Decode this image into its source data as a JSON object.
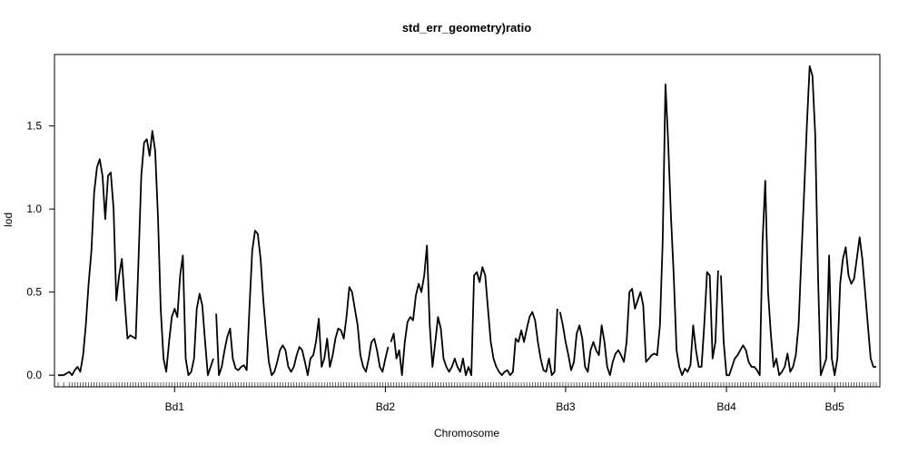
{
  "chart_data": {
    "type": "line",
    "title": "std_err_geometry)ratio",
    "xlabel": "Chromosome",
    "ylabel": "lod",
    "ylim": [
      -0.07,
      1.93
    ],
    "yticks": [
      0.0,
      0.5,
      1.0,
      1.5
    ],
    "ytick_labels": [
      "0.0",
      "0.5",
      "1.0",
      "1.5"
    ],
    "grid": false,
    "legend": "none",
    "line_color": "#000000",
    "chromosomes": [
      {
        "name": "Bd1",
        "start": 0,
        "end": 56,
        "points": [
          [
            0,
            0.0
          ],
          [
            2,
            0.0
          ],
          [
            4,
            0.02
          ],
          [
            5,
            0.0
          ],
          [
            6,
            0.03
          ],
          [
            7,
            0.05
          ],
          [
            8,
            0.02
          ],
          [
            9,
            0.12
          ],
          [
            10,
            0.3
          ],
          [
            11,
            0.55
          ],
          [
            12,
            0.75
          ],
          [
            13,
            1.1
          ],
          [
            14,
            1.25
          ],
          [
            15,
            1.3
          ],
          [
            16,
            1.2
          ],
          [
            17,
            0.94
          ],
          [
            18,
            1.2
          ],
          [
            19,
            1.22
          ],
          [
            20,
            1.0
          ],
          [
            21,
            0.45
          ],
          [
            22,
            0.6
          ],
          [
            23,
            0.7
          ],
          [
            24,
            0.45
          ],
          [
            25,
            0.22
          ],
          [
            26,
            0.24
          ],
          [
            27,
            0.23
          ],
          [
            28,
            0.22
          ],
          [
            29,
            0.7
          ],
          [
            30,
            1.2
          ],
          [
            31,
            1.4
          ],
          [
            32,
            1.42
          ],
          [
            33,
            1.32
          ],
          [
            34,
            1.47
          ],
          [
            35,
            1.35
          ],
          [
            36,
            0.95
          ],
          [
            37,
            0.4
          ],
          [
            38,
            0.1
          ],
          [
            39,
            0.02
          ],
          [
            40,
            0.2
          ],
          [
            41,
            0.35
          ],
          [
            42,
            0.4
          ],
          [
            43,
            0.35
          ],
          [
            44,
            0.6
          ],
          [
            45,
            0.72
          ],
          [
            46,
            0.1
          ],
          [
            47,
            0.0
          ],
          [
            48,
            0.02
          ],
          [
            49,
            0.1
          ],
          [
            50,
            0.4
          ],
          [
            51,
            0.49
          ],
          [
            52,
            0.42
          ],
          [
            53,
            0.2
          ],
          [
            54,
            0.0
          ],
          [
            55,
            0.05
          ],
          [
            56,
            0.1
          ]
        ]
      },
      {
        "name": "Bd2",
        "start": 57,
        "end": 119,
        "points": [
          [
            57,
            0.37
          ],
          [
            58,
            0.0
          ],
          [
            59,
            0.05
          ],
          [
            60,
            0.15
          ],
          [
            61,
            0.23
          ],
          [
            62,
            0.28
          ],
          [
            63,
            0.1
          ],
          [
            64,
            0.04
          ],
          [
            65,
            0.03
          ],
          [
            66,
            0.05
          ],
          [
            67,
            0.06
          ],
          [
            68,
            0.03
          ],
          [
            69,
            0.4
          ],
          [
            70,
            0.75
          ],
          [
            71,
            0.87
          ],
          [
            72,
            0.85
          ],
          [
            73,
            0.7
          ],
          [
            74,
            0.45
          ],
          [
            75,
            0.25
          ],
          [
            76,
            0.08
          ],
          [
            77,
            0.0
          ],
          [
            78,
            0.02
          ],
          [
            79,
            0.08
          ],
          [
            80,
            0.15
          ],
          [
            81,
            0.18
          ],
          [
            82,
            0.15
          ],
          [
            83,
            0.05
          ],
          [
            84,
            0.02
          ],
          [
            85,
            0.05
          ],
          [
            86,
            0.12
          ],
          [
            87,
            0.17
          ],
          [
            88,
            0.15
          ],
          [
            89,
            0.08
          ],
          [
            90,
            0.0
          ],
          [
            91,
            0.1
          ],
          [
            92,
            0.12
          ],
          [
            93,
            0.2
          ],
          [
            94,
            0.34
          ],
          [
            95,
            0.05
          ],
          [
            96,
            0.1
          ],
          [
            97,
            0.22
          ],
          [
            98,
            0.05
          ],
          [
            99,
            0.12
          ],
          [
            100,
            0.22
          ],
          [
            101,
            0.28
          ],
          [
            102,
            0.27
          ],
          [
            103,
            0.22
          ],
          [
            104,
            0.35
          ],
          [
            105,
            0.53
          ],
          [
            106,
            0.5
          ],
          [
            107,
            0.4
          ],
          [
            108,
            0.3
          ],
          [
            109,
            0.12
          ],
          [
            110,
            0.05
          ],
          [
            111,
            0.02
          ],
          [
            112,
            0.1
          ],
          [
            113,
            0.2
          ],
          [
            114,
            0.22
          ],
          [
            115,
            0.15
          ],
          [
            116,
            0.05
          ],
          [
            117,
            0.02
          ],
          [
            118,
            0.1
          ],
          [
            119,
            0.17
          ]
        ]
      },
      {
        "name": "Bd3",
        "start": 120,
        "end": 180,
        "points": [
          [
            120,
            0.2
          ],
          [
            121,
            0.25
          ],
          [
            122,
            0.1
          ],
          [
            123,
            0.15
          ],
          [
            124,
            0.0
          ],
          [
            125,
            0.2
          ],
          [
            126,
            0.32
          ],
          [
            127,
            0.35
          ],
          [
            128,
            0.33
          ],
          [
            129,
            0.48
          ],
          [
            130,
            0.55
          ],
          [
            131,
            0.5
          ],
          [
            132,
            0.6
          ],
          [
            133,
            0.78
          ],
          [
            134,
            0.3
          ],
          [
            135,
            0.05
          ],
          [
            136,
            0.2
          ],
          [
            137,
            0.35
          ],
          [
            138,
            0.28
          ],
          [
            139,
            0.1
          ],
          [
            140,
            0.05
          ],
          [
            141,
            0.02
          ],
          [
            142,
            0.05
          ],
          [
            143,
            0.1
          ],
          [
            144,
            0.05
          ],
          [
            145,
            0.02
          ],
          [
            146,
            0.1
          ],
          [
            147,
            0.0
          ],
          [
            148,
            0.05
          ],
          [
            149,
            0.0
          ],
          [
            150,
            0.6
          ],
          [
            151,
            0.62
          ],
          [
            152,
            0.56
          ],
          [
            153,
            0.65
          ],
          [
            154,
            0.6
          ],
          [
            155,
            0.4
          ],
          [
            156,
            0.2
          ],
          [
            157,
            0.1
          ],
          [
            158,
            0.05
          ],
          [
            159,
            0.02
          ],
          [
            160,
            0.0
          ],
          [
            161,
            0.02
          ],
          [
            162,
            0.03
          ],
          [
            163,
            0.0
          ],
          [
            164,
            0.02
          ],
          [
            165,
            0.22
          ],
          [
            166,
            0.2
          ],
          [
            167,
            0.27
          ],
          [
            168,
            0.2
          ],
          [
            169,
            0.28
          ],
          [
            170,
            0.35
          ],
          [
            171,
            0.38
          ],
          [
            172,
            0.33
          ],
          [
            173,
            0.2
          ],
          [
            174,
            0.1
          ],
          [
            175,
            0.03
          ],
          [
            176,
            0.02
          ],
          [
            177,
            0.1
          ],
          [
            178,
            0.0
          ],
          [
            179,
            0.02
          ],
          [
            180,
            0.4
          ]
        ]
      },
      {
        "name": "Bd4",
        "start": 181,
        "end": 238,
        "points": [
          [
            181,
            0.38
          ],
          [
            182,
            0.3
          ],
          [
            183,
            0.2
          ],
          [
            184,
            0.12
          ],
          [
            185,
            0.03
          ],
          [
            186,
            0.08
          ],
          [
            187,
            0.25
          ],
          [
            188,
            0.3
          ],
          [
            189,
            0.22
          ],
          [
            190,
            0.05
          ],
          [
            191,
            0.02
          ],
          [
            192,
            0.15
          ],
          [
            193,
            0.2
          ],
          [
            194,
            0.15
          ],
          [
            195,
            0.12
          ],
          [
            196,
            0.3
          ],
          [
            197,
            0.2
          ],
          [
            198,
            0.05
          ],
          [
            199,
            0.0
          ],
          [
            200,
            0.08
          ],
          [
            201,
            0.13
          ],
          [
            202,
            0.15
          ],
          [
            203,
            0.12
          ],
          [
            204,
            0.08
          ],
          [
            205,
            0.2
          ],
          [
            206,
            0.5
          ],
          [
            207,
            0.52
          ],
          [
            208,
            0.4
          ],
          [
            209,
            0.45
          ],
          [
            210,
            0.5
          ],
          [
            211,
            0.42
          ],
          [
            212,
            0.08
          ],
          [
            213,
            0.1
          ],
          [
            214,
            0.12
          ],
          [
            215,
            0.13
          ],
          [
            216,
            0.12
          ],
          [
            217,
            0.3
          ],
          [
            218,
            0.8
          ],
          [
            219,
            1.75
          ],
          [
            220,
            1.4
          ],
          [
            221,
            0.95
          ],
          [
            222,
            0.6
          ],
          [
            223,
            0.15
          ],
          [
            224,
            0.05
          ],
          [
            225,
            0.0
          ],
          [
            226,
            0.04
          ],
          [
            227,
            0.02
          ],
          [
            228,
            0.06
          ],
          [
            229,
            0.3
          ],
          [
            230,
            0.15
          ],
          [
            231,
            0.05
          ],
          [
            232,
            0.05
          ],
          [
            233,
            0.3
          ],
          [
            234,
            0.62
          ],
          [
            235,
            0.6
          ],
          [
            236,
            0.1
          ],
          [
            237,
            0.2
          ],
          [
            238,
            0.63
          ]
        ]
      },
      {
        "name": "Bd5",
        "start": 239,
        "end": 295,
        "points": [
          [
            239,
            0.6
          ],
          [
            240,
            0.2
          ],
          [
            241,
            0.0
          ],
          [
            242,
            0.0
          ],
          [
            243,
            0.05
          ],
          [
            244,
            0.1
          ],
          [
            245,
            0.12
          ],
          [
            246,
            0.15
          ],
          [
            247,
            0.18
          ],
          [
            248,
            0.15
          ],
          [
            249,
            0.08
          ],
          [
            250,
            0.05
          ],
          [
            251,
            0.05
          ],
          [
            252,
            0.03
          ],
          [
            253,
            0.0
          ],
          [
            254,
            0.8
          ],
          [
            255,
            1.17
          ],
          [
            256,
            0.5
          ],
          [
            257,
            0.25
          ],
          [
            258,
            0.05
          ],
          [
            259,
            0.1
          ],
          [
            260,
            0.0
          ],
          [
            261,
            0.02
          ],
          [
            262,
            0.05
          ],
          [
            263,
            0.13
          ],
          [
            264,
            0.02
          ],
          [
            265,
            0.05
          ],
          [
            266,
            0.12
          ],
          [
            267,
            0.3
          ],
          [
            268,
            0.7
          ],
          [
            269,
            1.1
          ],
          [
            270,
            1.5
          ],
          [
            271,
            1.86
          ],
          [
            272,
            1.8
          ],
          [
            273,
            1.45
          ],
          [
            274,
            0.6
          ],
          [
            275,
            0.0
          ],
          [
            276,
            0.05
          ],
          [
            277,
            0.1
          ],
          [
            278,
            0.72
          ],
          [
            279,
            0.1
          ],
          [
            280,
            0.0
          ],
          [
            281,
            0.1
          ],
          [
            282,
            0.55
          ],
          [
            283,
            0.7
          ],
          [
            284,
            0.77
          ],
          [
            285,
            0.6
          ],
          [
            286,
            0.55
          ],
          [
            287,
            0.58
          ],
          [
            288,
            0.7
          ],
          [
            289,
            0.83
          ],
          [
            290,
            0.7
          ],
          [
            291,
            0.5
          ],
          [
            292,
            0.3
          ],
          [
            293,
            0.1
          ],
          [
            294,
            0.05
          ],
          [
            295,
            0.05
          ]
        ]
      },
      {
        "name": "",
        "start": 296,
        "end": 330,
        "points": []
      }
    ],
    "xaxis": {
      "tick_labels": [
        {
          "label": "Bd1",
          "x": 42
        },
        {
          "label": "Bd2",
          "x": 118
        },
        {
          "label": "Bd3",
          "x": 183
        },
        {
          "label": "Bd4",
          "x": 241
        },
        {
          "label": "Bd5",
          "x": 280
        }
      ],
      "xlim": [
        0,
        295
      ]
    }
  }
}
